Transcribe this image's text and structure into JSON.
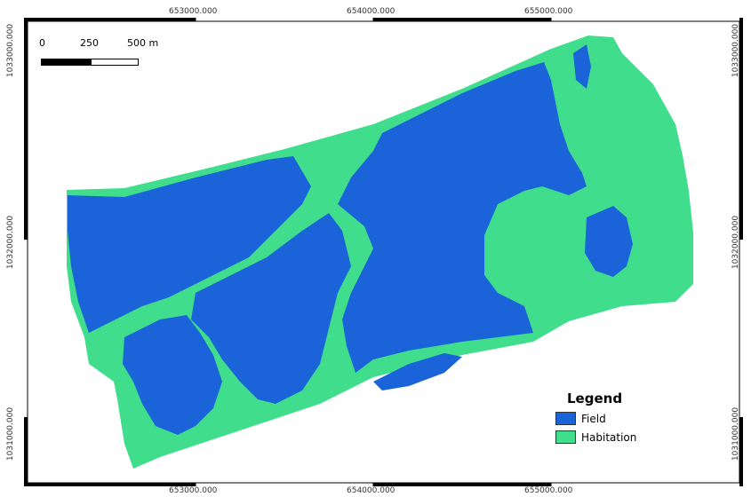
{
  "colors": {
    "field": "#1a63d8",
    "habitation": "#3fdd8c",
    "frame_black": "#000000",
    "background": "#ffffff"
  },
  "legend": {
    "title": "Legend",
    "items": [
      {
        "label": "Field",
        "color": "#1a63d8"
      },
      {
        "label": "Habitation",
        "color": "#3fdd8c"
      }
    ]
  },
  "scale_bar": {
    "labels": [
      "0",
      "250",
      "500 m"
    ]
  },
  "grid": {
    "x_labels": [
      "653000.000",
      "654000.000",
      "655000.000"
    ],
    "y_labels": [
      "1033000.000",
      "1032000.000",
      "1031000.000"
    ]
  }
}
